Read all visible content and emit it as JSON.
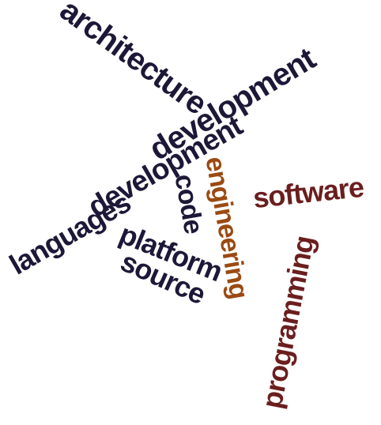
{
  "palette": {
    "navy": "#1d1838",
    "brown": "#9a4a12",
    "maroon": "#6b1e1e"
  },
  "words": [
    {
      "id": "architecture",
      "text": "architecture",
      "color": "#1d1838"
    },
    {
      "id": "development-upper",
      "text": "development",
      "color": "#1d1838"
    },
    {
      "id": "development-lower",
      "text": "development",
      "color": "#1d1838"
    },
    {
      "id": "code",
      "text": "code",
      "color": "#1d1838"
    },
    {
      "id": "engineering",
      "text": "engineering",
      "color": "#9a4a12"
    },
    {
      "id": "software",
      "text": "software",
      "color": "#6b1e1e"
    },
    {
      "id": "languages",
      "text": "languages",
      "color": "#1d1838"
    },
    {
      "id": "platform",
      "text": "platform",
      "color": "#1d1838"
    },
    {
      "id": "source",
      "text": "source",
      "color": "#1d1838"
    },
    {
      "id": "programming",
      "text": "programming",
      "color": "#6b1e1e"
    }
  ]
}
